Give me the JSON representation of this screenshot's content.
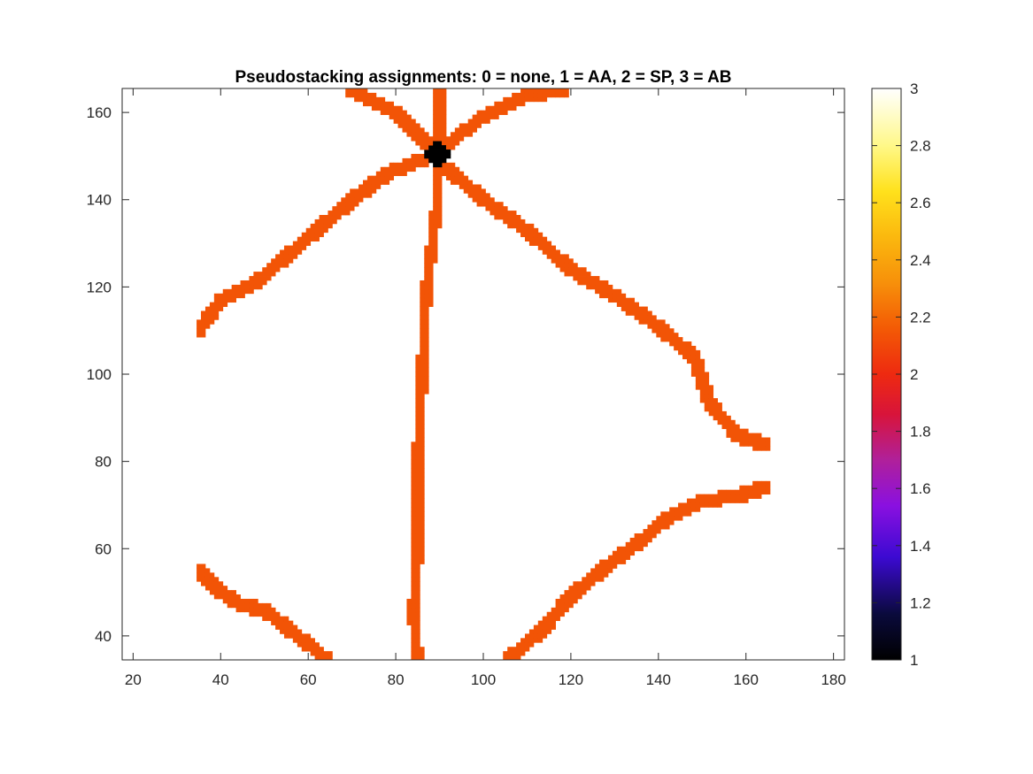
{
  "chart_data": {
    "type": "heatmap",
    "title": "Pseudostacking assignments: 0 = none, 1 = AA, 2 = SP, 3 = AB",
    "xlabel": "",
    "ylabel": "",
    "xlim": [
      17.5,
      182.5
    ],
    "ylim": [
      34.5,
      165.5
    ],
    "xticks": [
      20,
      40,
      60,
      80,
      100,
      120,
      140,
      160,
      180
    ],
    "yticks": [
      40,
      60,
      80,
      100,
      120,
      140,
      160
    ],
    "colorbar": {
      "colormap": "hot-like (black-blue-magenta-red-orange-yellow-white)",
      "limits": [
        1,
        3
      ],
      "ticks": [
        1,
        1.2,
        1.4,
        1.6,
        1.8,
        2,
        2.2,
        2.4,
        2.6,
        2.8,
        3
      ]
    },
    "colors": {
      "value_2_SP": "#f25406",
      "value_1_AA": "#000000",
      "background_value_3_AB": "#ffffff"
    },
    "regions": [
      {
        "name": "SP stripe upper-left",
        "value": 2,
        "halfwidth": 1.6,
        "points": [
          [
            35,
            110
          ],
          [
            40,
            117
          ],
          [
            48,
            121
          ],
          [
            55,
            127
          ],
          [
            62,
            133
          ],
          [
            70,
            140
          ],
          [
            78,
            146
          ],
          [
            88,
            150
          ]
        ]
      },
      {
        "name": "SP stripe upper-left short",
        "value": 2,
        "halfwidth": 1.5,
        "points": [
          [
            70,
            165
          ],
          [
            80,
            160
          ],
          [
            87,
            153
          ]
        ]
      },
      {
        "name": "SP stripe top-center",
        "value": 2,
        "halfwidth": 1.2,
        "points": [
          [
            90,
            153
          ],
          [
            90,
            165
          ]
        ]
      },
      {
        "name": "SP stripe upper-right short",
        "value": 2,
        "halfwidth": 1.5,
        "points": [
          [
            92,
            153
          ],
          [
            100,
            159
          ],
          [
            110,
            164
          ],
          [
            118,
            165
          ]
        ]
      },
      {
        "name": "SP stripe right upper",
        "value": 2,
        "halfwidth": 1.6,
        "points": [
          [
            92,
            147
          ],
          [
            100,
            140
          ],
          [
            110,
            133
          ],
          [
            120,
            124
          ],
          [
            130,
            118
          ],
          [
            140,
            111
          ],
          [
            148,
            104
          ],
          [
            152,
            93
          ],
          [
            158,
            86
          ],
          [
            164,
            84
          ]
        ]
      },
      {
        "name": "SP stripe right lower",
        "value": 2,
        "halfwidth": 1.6,
        "points": [
          [
            106,
            35
          ],
          [
            113,
            41
          ],
          [
            120,
            49
          ],
          [
            128,
            56
          ],
          [
            135,
            61
          ],
          [
            142,
            67
          ],
          [
            150,
            71
          ],
          [
            158,
            72
          ],
          [
            164,
            74
          ]
        ]
      },
      {
        "name": "SP stripe lower-left",
        "value": 2,
        "halfwidth": 1.6,
        "points": [
          [
            35,
            55
          ],
          [
            40,
            50
          ],
          [
            45,
            47
          ],
          [
            50,
            46
          ],
          [
            55,
            42
          ],
          [
            60,
            38
          ],
          [
            64,
            35
          ]
        ]
      },
      {
        "name": "SP stripe vertical",
        "value": 2,
        "halfwidth": 1.2,
        "points": [
          [
            90,
            148
          ],
          [
            89,
            135
          ],
          [
            87,
            120
          ],
          [
            86,
            100
          ],
          [
            85,
            80
          ],
          [
            85,
            60
          ],
          [
            84,
            45
          ],
          [
            85,
            35
          ]
        ]
      },
      {
        "name": "AA node",
        "value": 1,
        "halfwidth": 2.8,
        "points": [
          [
            89.5,
            150.5
          ]
        ]
      }
    ]
  }
}
